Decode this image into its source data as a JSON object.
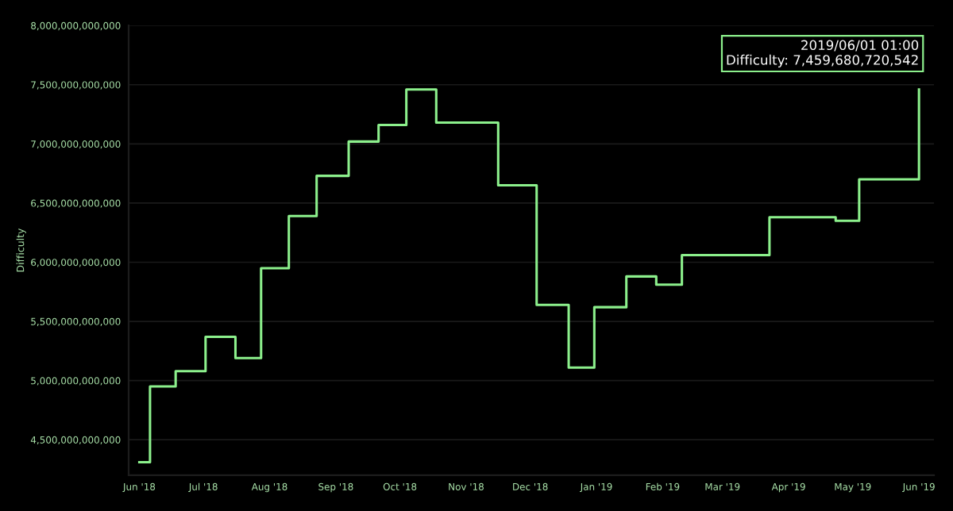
{
  "chart_data": {
    "type": "step",
    "ylabel": "Difficulty",
    "x": [
      "2018-06-01",
      "2018-06-06",
      "2018-06-18",
      "2018-07-02",
      "2018-07-16",
      "2018-07-28",
      "2018-08-10",
      "2018-08-23",
      "2018-09-07",
      "2018-09-21",
      "2018-10-04",
      "2018-10-18",
      "2018-11-16",
      "2018-12-04",
      "2018-12-19",
      "2018-12-31",
      "2019-01-15",
      "2019-01-29",
      "2019-02-10",
      "2019-03-23",
      "2019-04-23",
      "2019-05-04",
      "2019-06-01"
    ],
    "series": [
      {
        "color": "#8cf08c",
        "values": [
          4310000000000,
          4950000000000,
          5080000000000,
          5370000000000,
          5190000000000,
          5950000000000,
          6390000000000,
          6730000000000,
          7020000000000,
          7160000000000,
          7460000000000,
          7180000000000,
          6650000000000,
          5640000000000,
          5110000000000,
          5620000000000,
          5880000000000,
          5810000000000,
          6060000000000,
          6380000000000,
          6350000000000,
          6700000000000,
          7460000000000
        ]
      }
    ],
    "xlim": [
      "2018-05-27",
      "2019-06-08"
    ],
    "xticks": [
      {
        "value": "2018-06-01",
        "label": "Jun '18"
      },
      {
        "value": "2018-07-01",
        "label": "Jul '18"
      },
      {
        "value": "2018-08-01",
        "label": "Aug '18"
      },
      {
        "value": "2018-09-01",
        "label": "Sep '18"
      },
      {
        "value": "2018-10-01",
        "label": "Oct '18"
      },
      {
        "value": "2018-11-01",
        "label": "Nov '18"
      },
      {
        "value": "2018-12-01",
        "label": "Dec '18"
      },
      {
        "value": "2019-01-01",
        "label": "Jan '19"
      },
      {
        "value": "2019-02-01",
        "label": "Feb '19"
      },
      {
        "value": "2019-03-01",
        "label": "Mar '19"
      },
      {
        "value": "2019-04-01",
        "label": "Apr '19"
      },
      {
        "value": "2019-05-01",
        "label": "May '19"
      },
      {
        "value": "2019-06-01",
        "label": "Jun '19"
      }
    ],
    "ylim": [
      4200000000000,
      8000000000000
    ],
    "yticks": [
      {
        "value": 4500000000000,
        "label": "4,500,000,000,000"
      },
      {
        "value": 5000000000000,
        "label": "5,000,000,000,000"
      },
      {
        "value": 5500000000000,
        "label": "5,500,000,000,000"
      },
      {
        "value": 6000000000000,
        "label": "6,000,000,000,000"
      },
      {
        "value": 6500000000000,
        "label": "6,500,000,000,000"
      },
      {
        "value": 7000000000000,
        "label": "7,000,000,000,000"
      },
      {
        "value": 7500000000000,
        "label": "7,500,000,000,000"
      },
      {
        "value": 8000000000000,
        "label": "8,000,000,000,000"
      }
    ],
    "grid": "y",
    "annotations": [
      {
        "text": "2019/06/01 01:00\nDifficulty: 7,459,680,720,542",
        "x": "2019-06-01T01:00",
        "y": 7459680720542
      }
    ]
  }
}
